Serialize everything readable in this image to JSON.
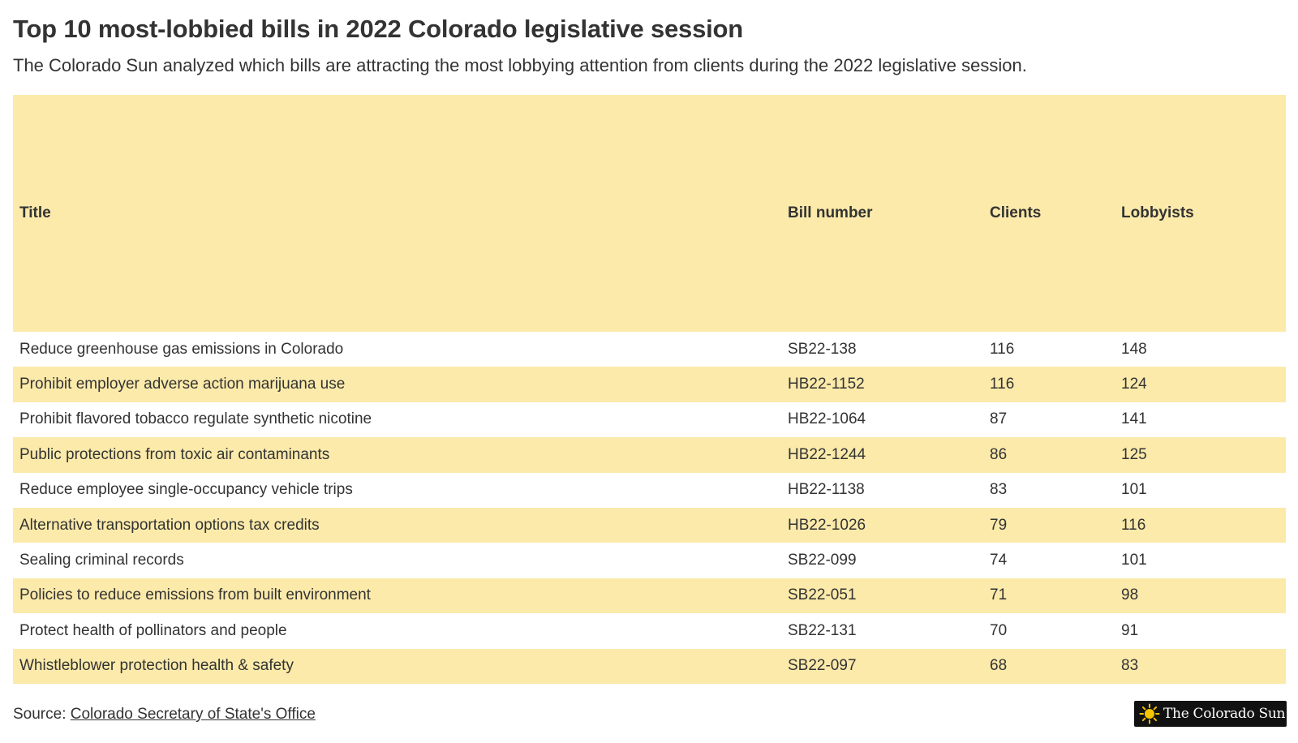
{
  "header": {
    "title": "Top 10 most-lobbied bills in 2022 Colorado legislative session",
    "subtitle": "The Colorado Sun analyzed which bills are attracting the most lobbying attention from clients during the 2022 legislative session."
  },
  "chart_data": {
    "type": "table",
    "columns": [
      "Title",
      "Bill number",
      "Clients",
      "Lobbyists"
    ],
    "rows": [
      [
        "Reduce greenhouse gas emissions in Colorado",
        "SB22-138",
        116,
        148
      ],
      [
        "Prohibit employer adverse action marijuana use",
        "HB22-1152",
        116,
        124
      ],
      [
        "Prohibit flavored tobacco regulate synthetic nicotine",
        "HB22-1064",
        87,
        141
      ],
      [
        "Public protections from toxic air contaminants",
        "HB22-1244",
        86,
        125
      ],
      [
        "Reduce employee single-occupancy vehicle trips",
        "HB22-1138",
        83,
        101
      ],
      [
        "Alternative transportation options tax credits",
        "HB22-1026",
        79,
        116
      ],
      [
        "Sealing criminal records",
        "SB22-099",
        74,
        101
      ],
      [
        "Policies to reduce emissions from built environment",
        "SB22-051",
        71,
        98
      ],
      [
        "Protect health of pollinators and people",
        "SB22-131",
        70,
        91
      ],
      [
        "Whistleblower protection health & safety",
        "SB22-097",
        68,
        83
      ]
    ]
  },
  "footer": {
    "source_label": "Source: ",
    "source_link": "Colorado Secretary of State's Office",
    "logo_text": "The Colorado Sun",
    "logo_icon": "sun-icon"
  },
  "colors": {
    "band": "#fbeaaa",
    "text": "#333333",
    "logo_bg": "#111111",
    "logo_sun": "#f5c400"
  }
}
